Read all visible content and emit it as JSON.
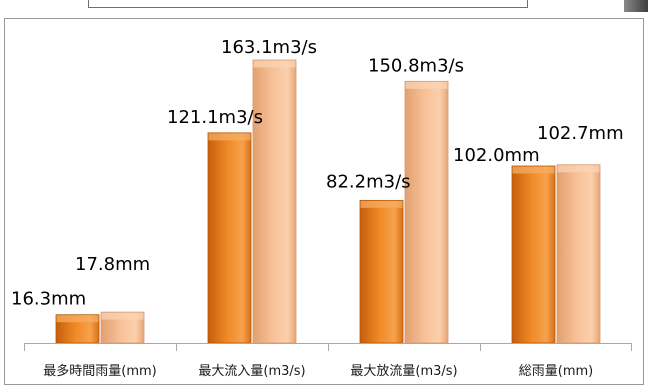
{
  "chart_data": {
    "type": "bar",
    "categories": [
      "最多時間雨量(mm)",
      "最大流入量(m3/s)",
      "最大放流量(m3/s)",
      "総雨量(mm)"
    ],
    "series": [
      {
        "values": [
          16.3,
          121.1,
          82.2,
          102.0
        ],
        "labels": [
          "16.3mm",
          "121.1m3/s",
          "82.2m3/s",
          "102.0mm"
        ]
      },
      {
        "values": [
          17.8,
          163.1,
          150.8,
          102.7
        ],
        "labels": [
          "17.8mm",
          "163.1m3/s",
          "150.8m3/s",
          "102.7mm"
        ]
      }
    ],
    "title": "",
    "xlabel": "",
    "ylabel": "",
    "ylim": [
      0,
      170
    ],
    "grid": false,
    "legend": "none"
  },
  "colors": {
    "series0_dark": "#c45e0a",
    "series0_mid": "#ef8a26",
    "series0_light": "#f6ad63",
    "series1_dark": "#d98e5b",
    "series1_mid": "#f3b486",
    "series1_light": "#fbd3b4"
  }
}
